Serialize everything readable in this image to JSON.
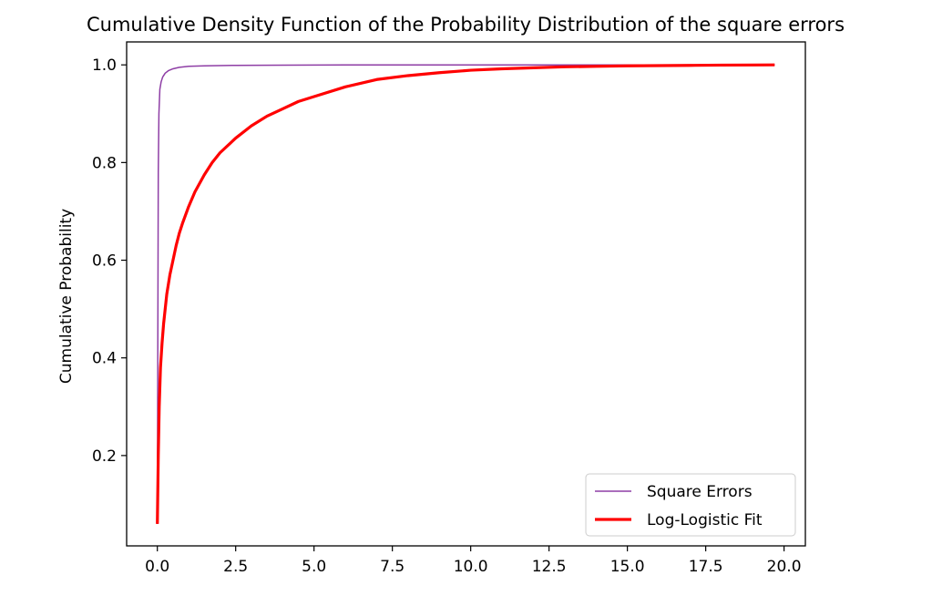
{
  "chart_data": {
    "type": "line",
    "title": "Cumulative Density Function of the Probability Distribution of the square errors",
    "xlabel": "",
    "ylabel": "Cumulative Probability",
    "xlim": [
      -0.98,
      20.68
    ],
    "ylim": [
      0.015,
      1.047
    ],
    "xticks": [
      0.0,
      2.5,
      5.0,
      7.5,
      10.0,
      12.5,
      15.0,
      17.5,
      20.0
    ],
    "xtick_labels": [
      "0.0",
      "2.5",
      "5.0",
      "7.5",
      "10.0",
      "12.5",
      "15.0",
      "17.5",
      "20.0"
    ],
    "yticks": [
      0.2,
      0.4,
      0.6,
      0.8,
      1.0
    ],
    "ytick_labels": [
      "0.2",
      "0.4",
      "0.6",
      "0.8",
      "1.0"
    ],
    "grid": false,
    "legend_position": "lower right",
    "series": [
      {
        "name": "Square Errors",
        "color": "#8e3ea5",
        "line_width": "thin",
        "x": [
          0.0,
          0.01,
          0.02,
          0.03,
          0.05,
          0.08,
          0.12,
          0.17,
          0.25,
          0.35,
          0.5,
          0.7,
          1.0,
          1.5,
          2.5,
          4.0,
          6.0,
          8.0,
          10.0,
          13.0,
          16.0,
          19.7
        ],
        "y": [
          0.06,
          0.3,
          0.55,
          0.78,
          0.9,
          0.95,
          0.965,
          0.975,
          0.983,
          0.988,
          0.992,
          0.995,
          0.997,
          0.998,
          0.999,
          0.9995,
          0.9998,
          0.9999,
          1.0,
          1.0,
          1.0,
          1.0
        ]
      },
      {
        "name": "Log-Logistic Fit",
        "color": "#ff0000",
        "line_width": "thick",
        "x": [
          0.0,
          0.03,
          0.06,
          0.1,
          0.15,
          0.2,
          0.3,
          0.4,
          0.5,
          0.6,
          0.7,
          0.8,
          1.0,
          1.2,
          1.5,
          1.75,
          2.0,
          2.5,
          3.0,
          3.5,
          4.0,
          4.5,
          5.0,
          6.0,
          7.0,
          8.0,
          9.0,
          10.0,
          11.0,
          12.0,
          13.0,
          14.0,
          15.0,
          16.0,
          17.0,
          18.0,
          19.0,
          19.7
        ],
        "y": [
          0.06,
          0.2,
          0.3,
          0.38,
          0.43,
          0.47,
          0.53,
          0.57,
          0.6,
          0.63,
          0.655,
          0.675,
          0.71,
          0.74,
          0.775,
          0.8,
          0.82,
          0.85,
          0.875,
          0.895,
          0.91,
          0.925,
          0.935,
          0.955,
          0.97,
          0.978,
          0.984,
          0.989,
          0.992,
          0.994,
          0.996,
          0.997,
          0.998,
          0.9985,
          0.999,
          0.9995,
          0.9998,
          1.0
        ]
      }
    ]
  }
}
